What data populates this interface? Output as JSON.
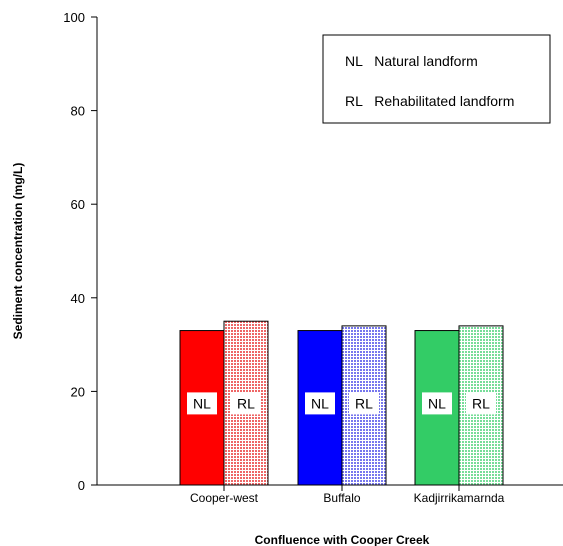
{
  "chart_data": {
    "type": "bar",
    "xlabel": "Confluence with Cooper Creek",
    "ylabel": "Sediment concentration (mg/L)",
    "ylim": [
      0,
      100
    ],
    "yticks": [
      0,
      20,
      40,
      60,
      80,
      100
    ],
    "grid": false,
    "legend_position": "top-right",
    "categories": [
      "Cooper-west",
      "Buffalo",
      "Kadjirrikamarnda"
    ],
    "series": [
      {
        "name": "Natural landform",
        "abbr": "NL",
        "values": [
          33,
          33,
          33
        ]
      },
      {
        "name": "Rehabilitated landform",
        "abbr": "RL",
        "values": [
          35,
          34,
          34
        ]
      }
    ],
    "bar_colors": [
      {
        "natural": "#ff0000",
        "rehab": "#f28c8c"
      },
      {
        "natural": "#0000ff",
        "rehab": "#9a9af0"
      },
      {
        "natural": "#33cc66",
        "rehab": "#a6e6bf"
      }
    ]
  }
}
